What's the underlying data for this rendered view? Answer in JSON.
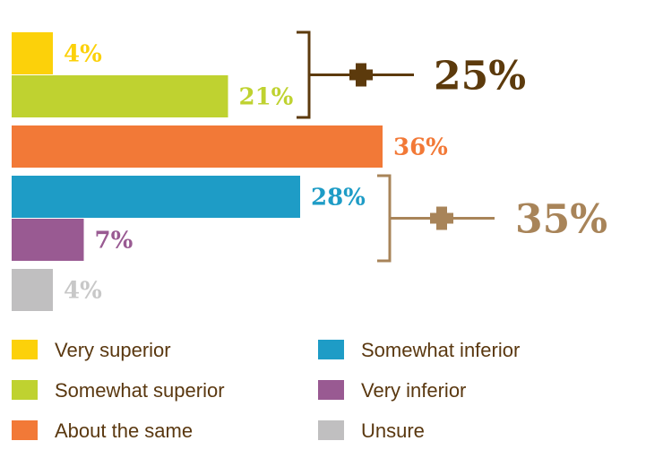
{
  "chart_data": {
    "type": "bar",
    "orientation": "horizontal",
    "categories": [
      "Very superior",
      "Somewhat superior",
      "About the same",
      "Somewhat inferior",
      "Very inferior",
      "Unsure"
    ],
    "values": [
      4,
      21,
      36,
      28,
      7,
      4
    ],
    "value_labels": [
      "4%",
      "21%",
      "36%",
      "28%",
      "7%",
      "4%"
    ],
    "colors": [
      "#fcd10a",
      "#bfd230",
      "#f27937",
      "#1e9cc6",
      "#995a92",
      "#c0bfc0"
    ],
    "value_label_colors": [
      "#fcd10a",
      "#bfd230",
      "#f27937",
      "#1e9cc6",
      "#995a92",
      "#c8c8c8"
    ],
    "title": "",
    "xlabel": "",
    "ylabel": "",
    "grid": false,
    "legend": {
      "placement": "bottom",
      "columns": 2,
      "items": [
        "Very superior",
        "Somewhat superior",
        "About the same",
        "Somewhat inferior",
        "Very inferior",
        "Unsure"
      ],
      "text_color": "#5a3810"
    },
    "annotations": [
      {
        "label": "25%",
        "groups": [
          0,
          1
        ],
        "color": "#5c3a0c"
      },
      {
        "label": "35%",
        "groups": [
          3,
          4
        ],
        "color": "#a88459"
      }
    ]
  }
}
